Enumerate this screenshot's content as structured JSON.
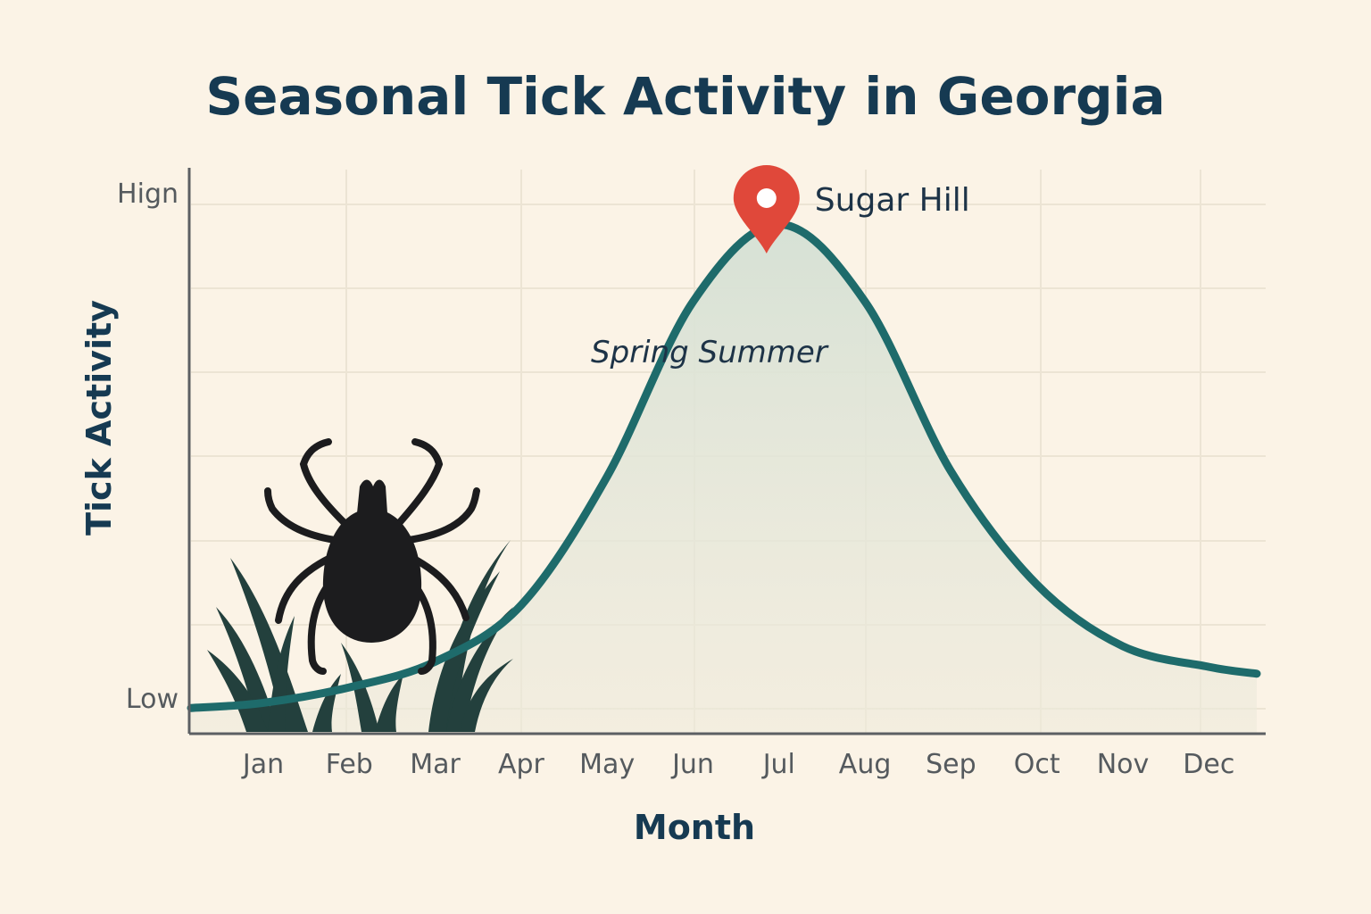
{
  "chart_data": {
    "type": "area",
    "title": "Seasonal Tick Activity in Georgia",
    "xlabel": "Month",
    "ylabel": "Tick Activity",
    "categories": [
      "Jan",
      "Feb",
      "Mar",
      "Apr",
      "May",
      "Jun",
      "Jul",
      "Aug",
      "Sep",
      "Oct",
      "Nov",
      "Dec"
    ],
    "y_ticks": [
      {
        "label": "Low",
        "value": 0
      },
      {
        "label": "Hign",
        "value": 1
      }
    ],
    "ylim": [
      -0.05,
      1.05
    ],
    "series": [
      {
        "values": [
          0.01,
          0.04,
          0.09,
          0.2,
          0.45,
          0.79,
          0.94,
          0.79,
          0.46,
          0.24,
          0.12,
          0.08
        ]
      }
    ],
    "annotations": [
      {
        "text": "Spring Summer",
        "x": "May",
        "y": 0.72
      }
    ],
    "marker": {
      "label": "Sugar Hill",
      "x": "Jul",
      "y": 0.94,
      "icon": "map-pin-icon",
      "color": "#e0483a"
    },
    "grid": true,
    "colors": {
      "line": "#1e6b6b",
      "fill": "#d9e3d6",
      "grid": "#ece4d4",
      "axis": "#5c5f63",
      "background": "#fbf3e6",
      "tick_icon": "#1c1c1e",
      "grass": "#23403d"
    },
    "decorations": [
      "tick-icon",
      "grass-icon"
    ]
  }
}
